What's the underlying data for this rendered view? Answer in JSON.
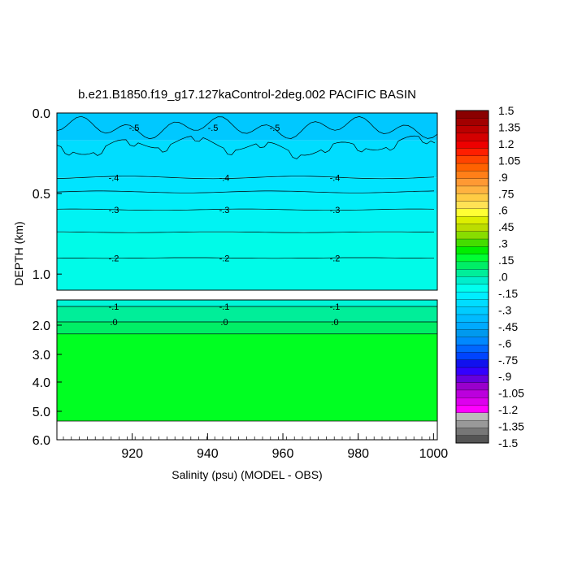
{
  "chart_data": {
    "type": "heatmap",
    "title": "b.e21.B1850.f19_g17.127kaControl-2deg.002 PACIFIC BASIN",
    "xlabel": "Salinity (psu) (MODEL - OBS)",
    "ylabel": "DEPTH (km)",
    "xlim": [
      900,
      1001
    ],
    "x_ticks": [
      "920",
      "940",
      "960",
      "980",
      "1000"
    ],
    "upper_panel": {
      "ylim": [
        0,
        1.1
      ],
      "y_ticks": [
        "0.0",
        "0.5",
        "1.0"
      ],
      "contours": [
        {
          "level": "-.5",
          "depth": 0.08
        },
        {
          "level": "-.4",
          "depth": 0.4
        },
        {
          "level": "-.3",
          "depth": 0.6
        },
        {
          "level": "-.2",
          "depth": 0.9
        }
      ]
    },
    "lower_panel": {
      "ylim": [
        1.0,
        6.0
      ],
      "y_ticks": [
        "2.0",
        "3.0",
        "4.0",
        "5.0",
        "6.0"
      ],
      "contours": [
        {
          "level": "-.1",
          "depth": 1.45
        },
        {
          "level": ".0",
          "depth": 1.95
        }
      ],
      "data_bottom_depth": 5.35
    },
    "colorbar": {
      "labels": [
        "1.5",
        "1.35",
        "1.2",
        "1.05",
        ".9",
        ".75",
        ".6",
        ".45",
        ".3",
        ".15",
        ".0",
        "-.15",
        "-.3",
        "-.45",
        "-.6",
        "-.75",
        "-.9",
        "-1.05",
        "-1.2",
        "-1.35",
        "-1.5"
      ],
      "colors": [
        "#8a0000",
        "#a20000",
        "#bb0000",
        "#d40000",
        "#ee0000",
        "#ff1f00",
        "#ff4400",
        "#ff6200",
        "#ff7f18",
        "#ff9933",
        "#ffb240",
        "#ffcc44",
        "#ffe255",
        "#ffff33",
        "#ddee00",
        "#bbdd00",
        "#88dd00",
        "#44dd00",
        "#00ee00",
        "#00ff33",
        "#00ee66",
        "#00ee99",
        "#00eecc",
        "#00ffee",
        "#00eeff",
        "#00ddff",
        "#00ccff",
        "#00bbff",
        "#00aaff",
        "#0099ee",
        "#0088ff",
        "#0066ff",
        "#0044ff",
        "#1111ee",
        "#3300ff",
        "#6600dd",
        "#9900cc",
        "#bb00dd",
        "#dd00ee",
        "#ff00ff",
        "#bbbbbb",
        "#999999",
        "#777777",
        "#555555"
      ]
    }
  }
}
